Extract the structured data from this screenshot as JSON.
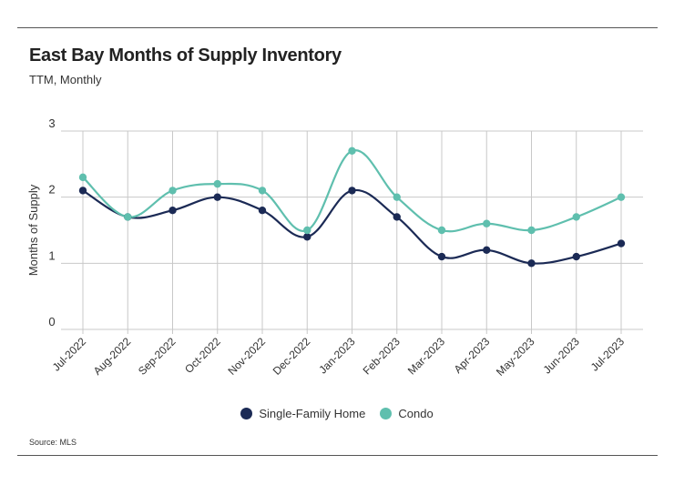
{
  "header": {
    "title": "East Bay Months of Supply Inventory",
    "subtitle": "TTM, Monthly"
  },
  "source": "Source:  MLS",
  "colors": {
    "single_family": "#1b2a55",
    "condo": "#5fbfae",
    "grid": "#c8c8c8"
  },
  "chart_data": {
    "type": "line",
    "title": "East Bay Months of Supply Inventory",
    "subtitle": "TTM, Monthly",
    "xlabel": "",
    "ylabel": "Months of Supply",
    "ylim": [
      0,
      3
    ],
    "yticks": [
      0,
      1,
      2,
      3
    ],
    "grid": true,
    "legend_position": "bottom",
    "categories": [
      "Jul-2022",
      "Aug-2022",
      "Sep-2022",
      "Oct-2022",
      "Nov-2022",
      "Dec-2022",
      "Jan-2023",
      "Feb-2023",
      "Mar-2023",
      "Apr-2023",
      "May-2023",
      "Jun-2023",
      "Jul-2023"
    ],
    "series": [
      {
        "name": "Single-Family Home",
        "values": [
          2.1,
          1.7,
          1.8,
          2.0,
          1.8,
          1.4,
          2.1,
          1.7,
          1.1,
          1.2,
          1.0,
          1.1,
          1.3
        ]
      },
      {
        "name": "Condo",
        "values": [
          2.3,
          1.7,
          2.1,
          2.2,
          2.1,
          1.5,
          2.7,
          2.0,
          1.5,
          1.6,
          1.5,
          1.7,
          2.0
        ]
      }
    ]
  }
}
